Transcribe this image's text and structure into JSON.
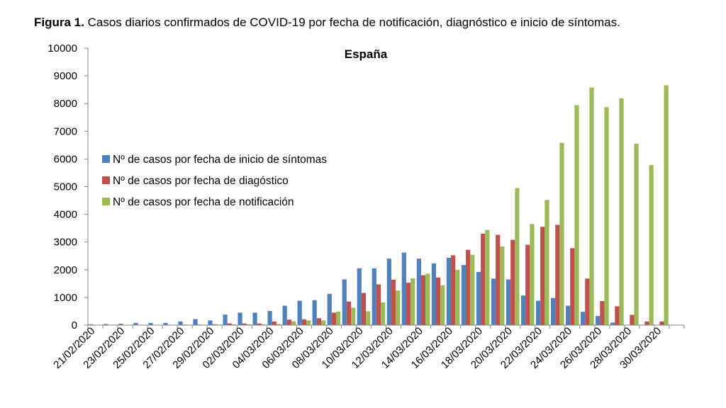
{
  "figure": {
    "label": "Figura 1.",
    "caption": "Casos diarios confirmados de COVID-19 por fecha de notificación, diagnóstico e inicio de síntomas."
  },
  "chart_data": {
    "type": "bar",
    "title": "España",
    "xlabel": "",
    "ylabel": "",
    "ylim": [
      0,
      10000
    ],
    "yticks": [
      0,
      1000,
      2000,
      3000,
      4000,
      5000,
      6000,
      7000,
      8000,
      9000,
      10000
    ],
    "legend_position": "left",
    "grid": false,
    "categories": [
      "21/02/2020",
      "22/02/2020",
      "23/02/2020",
      "24/02/2020",
      "25/02/2020",
      "26/02/2020",
      "27/02/2020",
      "28/02/2020",
      "29/02/2020",
      "01/03/2020",
      "02/03/2020",
      "03/03/2020",
      "04/03/2020",
      "05/03/2020",
      "06/03/2020",
      "07/03/2020",
      "08/03/2020",
      "09/03/2020",
      "10/03/2020",
      "11/03/2020",
      "12/03/2020",
      "13/03/2020",
      "14/03/2020",
      "15/03/2020",
      "16/03/2020",
      "17/03/2020",
      "18/03/2020",
      "19/03/2020",
      "20/03/2020",
      "21/03/2020",
      "22/03/2020",
      "23/03/2020",
      "24/03/2020",
      "25/03/2020",
      "26/03/2020",
      "27/03/2020",
      "28/03/2020",
      "29/03/2020",
      "30/03/2020",
      "31/03/2020"
    ],
    "tick_labels": [
      "21/02/2020",
      "23/02/2020",
      "25/02/2020",
      "27/02/2020",
      "29/02/2020",
      "02/03/2020",
      "04/03/2020",
      "06/03/2020",
      "08/03/2020",
      "10/03/2020",
      "12/03/2020",
      "14/03/2020",
      "16/03/2020",
      "18/03/2020",
      "20/03/2020",
      "22/03/2020",
      "24/03/2020",
      "26/03/2020",
      "28/03/2020",
      "30/03/2020"
    ],
    "series": [
      {
        "name": "Nº de casos por fecha de inicio de síntomas",
        "color": "#4f81bd",
        "values": [
          30,
          40,
          50,
          80,
          80,
          80,
          130,
          220,
          170,
          380,
          450,
          450,
          510,
          700,
          880,
          900,
          1130,
          1650,
          2050,
          2050,
          2400,
          2620,
          2400,
          2230,
          2430,
          2170,
          1920,
          1680,
          1650,
          1070,
          880,
          980,
          700,
          480,
          330,
          90,
          0,
          0,
          0,
          0
        ]
      },
      {
        "name": "Nº de casos por fecha de diagóstico",
        "color": "#c0504d",
        "values": [
          0,
          0,
          0,
          0,
          0,
          10,
          20,
          20,
          30,
          60,
          60,
          60,
          130,
          200,
          210,
          250,
          450,
          850,
          1160,
          1470,
          1640,
          1530,
          1800,
          1720,
          2520,
          2720,
          3300,
          3260,
          3080,
          2900,
          3550,
          3620,
          2780,
          1680,
          870,
          680,
          370,
          130,
          130,
          0
        ]
      },
      {
        "name": "Nº de casos por fecha de notificación",
        "color": "#9bbb59",
        "values": [
          0,
          0,
          0,
          0,
          0,
          0,
          0,
          10,
          20,
          30,
          30,
          30,
          40,
          140,
          170,
          170,
          490,
          630,
          500,
          820,
          1250,
          1690,
          1860,
          1440,
          2000,
          2540,
          3440,
          2840,
          4950,
          3650,
          4520,
          6580,
          7940,
          8580,
          7870,
          8190,
          6550,
          5780,
          8660,
          0
        ]
      }
    ]
  }
}
